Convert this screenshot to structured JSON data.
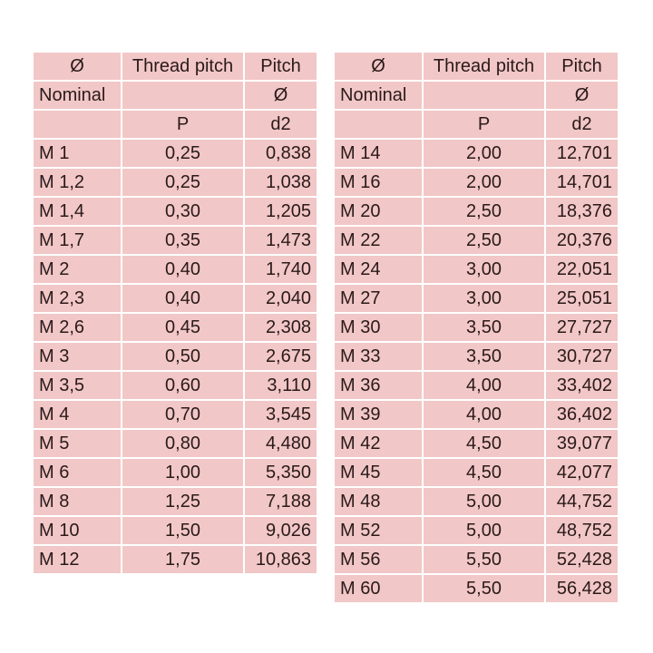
{
  "headers": {
    "row1": [
      "Ø",
      "Thread pitch",
      "Pitch"
    ],
    "row2": [
      "Nominal",
      "",
      "Ø"
    ],
    "row3": [
      "",
      "P",
      "d2"
    ]
  },
  "left_rows": [
    [
      "M 1",
      "0,25",
      "0,838"
    ],
    [
      "M 1,2",
      "0,25",
      "1,038"
    ],
    [
      "M 1,4",
      "0,30",
      "1,205"
    ],
    [
      "M 1,7",
      "0,35",
      "1,473"
    ],
    [
      "M 2",
      "0,40",
      "1,740"
    ],
    [
      "M 2,3",
      "0,40",
      "2,040"
    ],
    [
      "M 2,6",
      "0,45",
      "2,308"
    ],
    [
      "M 3",
      "0,50",
      "2,675"
    ],
    [
      "M 3,5",
      "0,60",
      "3,110"
    ],
    [
      "M 4",
      "0,70",
      "3,545"
    ],
    [
      "M 5",
      "0,80",
      "4,480"
    ],
    [
      "M 6",
      "1,00",
      "5,350"
    ],
    [
      "M 8",
      "1,25",
      "7,188"
    ],
    [
      "M 10",
      "1,50",
      "9,026"
    ],
    [
      "M 12",
      "1,75",
      "10,863"
    ]
  ],
  "right_rows": [
    [
      "M 14",
      "2,00",
      "12,701"
    ],
    [
      "M 16",
      "2,00",
      "14,701"
    ],
    [
      "M 20",
      "2,50",
      "18,376"
    ],
    [
      "M 22",
      "2,50",
      "20,376"
    ],
    [
      "M 24",
      "3,00",
      "22,051"
    ],
    [
      "M 27",
      "3,00",
      "25,051"
    ],
    [
      "M 30",
      "3,50",
      "27,727"
    ],
    [
      "M 33",
      "3,50",
      "30,727"
    ],
    [
      "M 36",
      "4,00",
      "33,402"
    ],
    [
      "M 39",
      "4,00",
      "36,402"
    ],
    [
      "M 42",
      "4,50",
      "39,077"
    ],
    [
      "M 45",
      "4,50",
      "42,077"
    ],
    [
      "M 48",
      "5,00",
      "44,752"
    ],
    [
      "M 52",
      "5,00",
      "48,752"
    ],
    [
      "M 56",
      "5,50",
      "52,428"
    ],
    [
      "M 60",
      "5,50",
      "56,428"
    ]
  ],
  "colors": {
    "cell_background": "#f2c7c7",
    "text": "#2a1a1a",
    "gridline": "#ffffff"
  }
}
